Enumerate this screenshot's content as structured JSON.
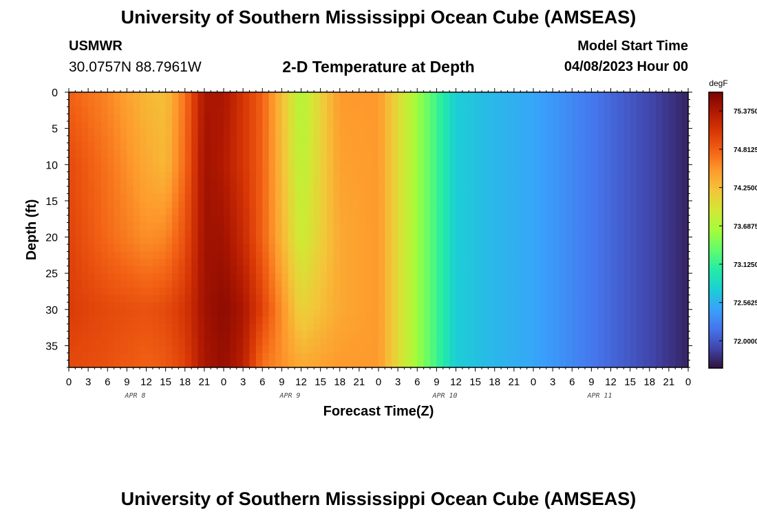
{
  "header": {
    "title": "University of Southern Mississippi Ocean Cube (AMSEAS)",
    "station": "USMWR",
    "coords": "30.0757N  88.7961W",
    "subtitle": "2-D Temperature at Depth",
    "model_label": "Model Start Time",
    "model_time": "04/08/2023 Hour 00"
  },
  "footer": {
    "title": "University of Southern Mississippi Ocean Cube (AMSEAS)"
  },
  "chart_data": {
    "type": "heatmap",
    "xlabel": "Forecast Time(Z)",
    "ylabel": "Depth (ft)",
    "x_tick_labels": [
      "0",
      "3",
      "6",
      "9",
      "12",
      "15",
      "18",
      "21",
      "0",
      "3",
      "6",
      "9",
      "12",
      "15",
      "18",
      "21",
      "0",
      "3",
      "6",
      "9",
      "12",
      "15",
      "18",
      "21",
      "0",
      "3",
      "6",
      "9",
      "12",
      "15",
      "18",
      "21",
      "0"
    ],
    "day_labels": [
      "APR 8",
      "APR 9",
      "APR 10",
      "APR 11"
    ],
    "x_hours_range": [
      0,
      96
    ],
    "y_ticks": [
      0,
      5,
      10,
      15,
      20,
      25,
      30,
      35
    ],
    "ylim": [
      0,
      38
    ],
    "y_inverted": true,
    "colorbar": {
      "unit": "degF",
      "ticks": [
        "75.3750",
        "74.8125",
        "74.2500",
        "73.6875",
        "73.1250",
        "72.5625",
        "72.0000"
      ],
      "range": [
        71.6,
        75.65
      ],
      "colors": [
        "#30123b",
        "#4145ab",
        "#4675ed",
        "#39a2fc",
        "#1bcfd4",
        "#24eca6",
        "#61fc6c",
        "#a4fc3b",
        "#d1e834",
        "#f3c63a",
        "#fe9b2d",
        "#f36315",
        "#d93806",
        "#b11901",
        "#7a0402"
      ]
    },
    "time_hours": [
      0,
      6,
      12,
      15,
      18,
      21,
      24,
      27,
      30,
      36,
      42,
      48,
      54,
      60,
      66,
      72,
      84,
      96
    ],
    "profiles": [
      {
        "depth": 0,
        "values": [
          74.8,
          74.6,
          74.3,
          74.25,
          74.7,
          75.4,
          75.4,
          75.1,
          74.8,
          73.7,
          74.5,
          74.5,
          73.6,
          72.75,
          72.6,
          72.5,
          72.1,
          71.7
        ]
      },
      {
        "depth": 10,
        "values": [
          74.95,
          74.7,
          74.4,
          74.3,
          74.75,
          75.45,
          75.35,
          75.1,
          74.8,
          73.75,
          74.45,
          74.5,
          73.6,
          72.75,
          72.6,
          72.5,
          72.1,
          71.7
        ]
      },
      {
        "depth": 20,
        "values": [
          75.0,
          74.75,
          74.55,
          74.6,
          74.9,
          75.45,
          75.45,
          75.2,
          74.8,
          73.85,
          74.4,
          74.5,
          73.6,
          72.75,
          72.6,
          72.5,
          72.1,
          71.7
        ]
      },
      {
        "depth": 30,
        "values": [
          75.05,
          74.95,
          74.9,
          74.95,
          75.1,
          75.45,
          75.55,
          75.4,
          75.0,
          74.1,
          74.4,
          74.5,
          73.6,
          72.75,
          72.6,
          72.5,
          72.1,
          71.7
        ]
      },
      {
        "depth": 38,
        "values": [
          74.95,
          74.9,
          74.8,
          74.85,
          75.0,
          75.4,
          75.5,
          75.3,
          74.7,
          74.4,
          74.5,
          74.5,
          73.6,
          72.75,
          72.6,
          72.5,
          72.1,
          71.7
        ]
      }
    ]
  }
}
